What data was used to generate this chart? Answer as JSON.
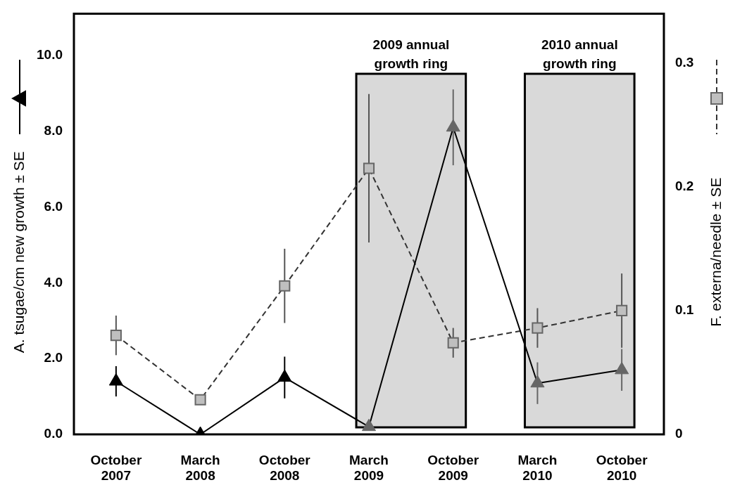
{
  "chart_data": {
    "type": "line",
    "categories": [
      "October 2007",
      "March 2008",
      "October 2008",
      "March 2009",
      "October 2009",
      "March 2010",
      "October 2010"
    ],
    "series": [
      {
        "axis": "y",
        "color": "#000000",
        "colors": [
          "#000000",
          "#000000",
          "#000000",
          "#666666",
          "#666666",
          "#666666",
          "#666666"
        ],
        "marker": "triangle",
        "line_style": "solid",
        "values": [
          1.4,
          0.0,
          1.5,
          0.2,
          8.1,
          1.35,
          1.7
        ],
        "errors": [
          0.4,
          null,
          0.55,
          null,
          1.0,
          0.55,
          0.55
        ]
      },
      {
        "axis": "y2",
        "color": "#bfbfbf",
        "marker": "square",
        "line_style": "dashed",
        "values": [
          0.08,
          0.028,
          0.12,
          0.215,
          0.074,
          0.086,
          0.1
        ],
        "errors": [
          0.016,
          0.004,
          0.03,
          0.06,
          0.012,
          0.016,
          0.03
        ]
      }
    ],
    "ylabel": "A. tsugae/cm new growth ± SE",
    "y2label": "F. externa/needle ± SE",
    "ylim": [
      0,
      11.1
    ],
    "yticks": [
      {
        "value": 0,
        "label": "0.0"
      },
      {
        "value": 2,
        "label": "2.0"
      },
      {
        "value": 4,
        "label": "4.0"
      },
      {
        "value": 6,
        "label": "6.0"
      },
      {
        "value": 8,
        "label": "8.0"
      },
      {
        "value": 10,
        "label": "10.0"
      }
    ],
    "y2lim": [
      0,
      0.34
    ],
    "y2ticks": [
      0,
      0.1,
      0.2,
      0.3
    ],
    "bands": [
      {
        "axis": "x",
        "from": "March 2009",
        "to": "October 2009",
        "label": "2009 annual growth ring",
        "color": "#d9d9d9"
      },
      {
        "axis": "x",
        "from": "March 2010",
        "to": "October 2010",
        "label": "2010 annual growth ring",
        "color": "#d9d9d9"
      }
    ],
    "grid": false,
    "legend": false
  }
}
